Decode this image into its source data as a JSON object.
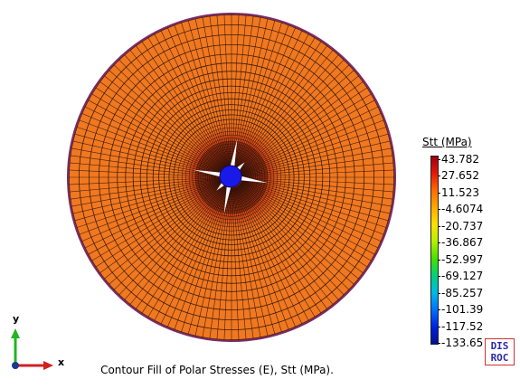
{
  "legend": {
    "title": "Stt (MPa)",
    "labels": [
      "43.782",
      "27.652",
      "11.523",
      "-4.6074",
      "-20.737",
      "-36.867",
      "-52.997",
      "-69.127",
      "-85.257",
      "-101.39",
      "-117.52",
      "-133.65"
    ],
    "colors": [
      "#a00010",
      "#e41808",
      "#ff6a00",
      "#ffa800",
      "#ffe000",
      "#b8f000",
      "#40e000",
      "#00d080",
      "#00b8e8",
      "#0070ff",
      "#0020e0",
      "#001090"
    ]
  },
  "caption": "Contour Fill of Polar Stresses (E), Stt (MPa).",
  "logo": {
    "line1": "DIS",
    "line2": "ROC"
  },
  "triad": {
    "x_label": "x",
    "y_label": "y"
  },
  "colors": {
    "field": "#f07820",
    "mesh": "#2a1208",
    "boundary": "#7a2a6a",
    "hole": "#1a1ae8",
    "crack": "#ffffff"
  }
}
